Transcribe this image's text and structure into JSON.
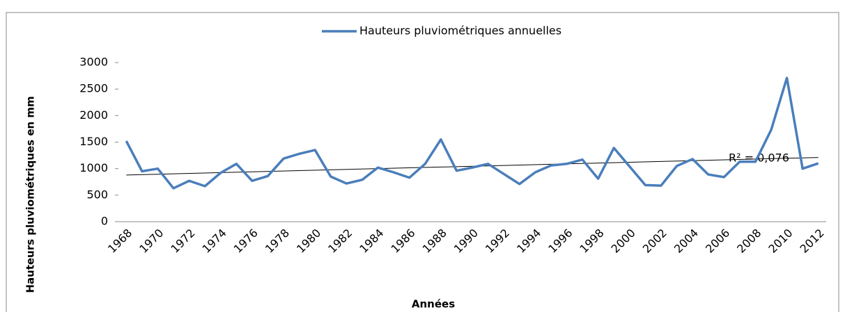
{
  "chart_data": {
    "type": "line",
    "legend": "top",
    "x_label": "Années",
    "y_label": "Hauteurs pluviométriques en mm",
    "annotation": "R² = 0,076",
    "categories": [
      "1968",
      null,
      "1970",
      null,
      "1972",
      null,
      "1974",
      null,
      "1976",
      null,
      "1978",
      null,
      "1980",
      null,
      "1982",
      null,
      "1984",
      null,
      "1986",
      null,
      "1988",
      null,
      "1990",
      null,
      "1992",
      null,
      "1994",
      null,
      "1996",
      null,
      "1998",
      null,
      "2000",
      null,
      "2002",
      null,
      "2004",
      null,
      "2006",
      null,
      "2008",
      null,
      "2010",
      null,
      "2012"
    ],
    "series": [
      {
        "name": "Hauteurs pluviométriques annuelles",
        "color": "#4a7ebb",
        "values": [
          1520,
          950,
          1000,
          630,
          770,
          670,
          920,
          1090,
          770,
          860,
          1190,
          1280,
          1350,
          850,
          720,
          790,
          1020,
          930,
          830,
          1090,
          1550,
          960,
          1020,
          1090,
          900,
          710,
          930,
          1060,
          1090,
          1170,
          810,
          1390,
          1040,
          690,
          680,
          1050,
          1180,
          890,
          840,
          1130,
          1130,
          1730,
          2710,
          1000,
          1100
        ]
      }
    ],
    "trend": [
      880,
      1210
    ],
    "trend_color": "#000000",
    "ylim": [
      0,
      3000
    ],
    "yticks": [
      0,
      500,
      1000,
      1500,
      2000,
      2500,
      3000
    ],
    "grid": false
  }
}
